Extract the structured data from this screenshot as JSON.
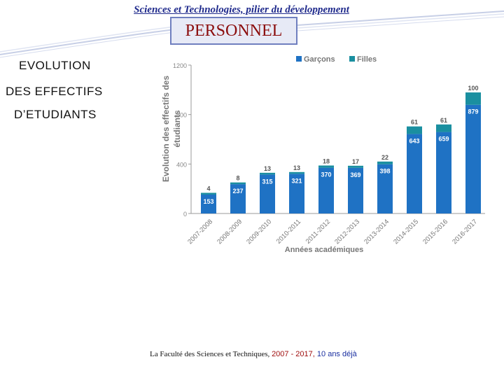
{
  "header": {
    "title": "Sciences et Technologies, pilier du développement"
  },
  "section": {
    "title": "PERSONNEL"
  },
  "side_text": {
    "line1": "EVOLUTION",
    "line2": "DES EFFECTIFS",
    "line3": "D’ETUDIANTS"
  },
  "footer": {
    "text": "La Faculté des Sciences et Techniques, ",
    "years": "2007 - 2017, ",
    "count": "10 ans déjà"
  },
  "chart_data": {
    "type": "bar",
    "stacked": true,
    "categories": [
      "2007-2008",
      "2008-2009",
      "2009-2010",
      "2010-2011",
      "2011-2012",
      "2012-2013",
      "2013-2014",
      "2014-2015",
      "2015-2016",
      "2016-2017"
    ],
    "series": [
      {
        "name": "Garçons",
        "values": [
          153,
          237,
          315,
          321,
          370,
          369,
          398,
          643,
          659,
          879
        ],
        "color": "#1f72c4"
      },
      {
        "name": "Filles",
        "values": [
          4,
          8,
          13,
          13,
          18,
          17,
          22,
          61,
          61,
          100
        ],
        "color": "#1a8fa0"
      }
    ],
    "ylabel": "Evolution des effectifs des étudiants",
    "xlabel": "Années académiques",
    "yticks": [
      "0",
      "400",
      "800",
      "1200"
    ],
    "ylim": [
      0,
      1200
    ],
    "legend_position": "top-right",
    "grid": false
  }
}
